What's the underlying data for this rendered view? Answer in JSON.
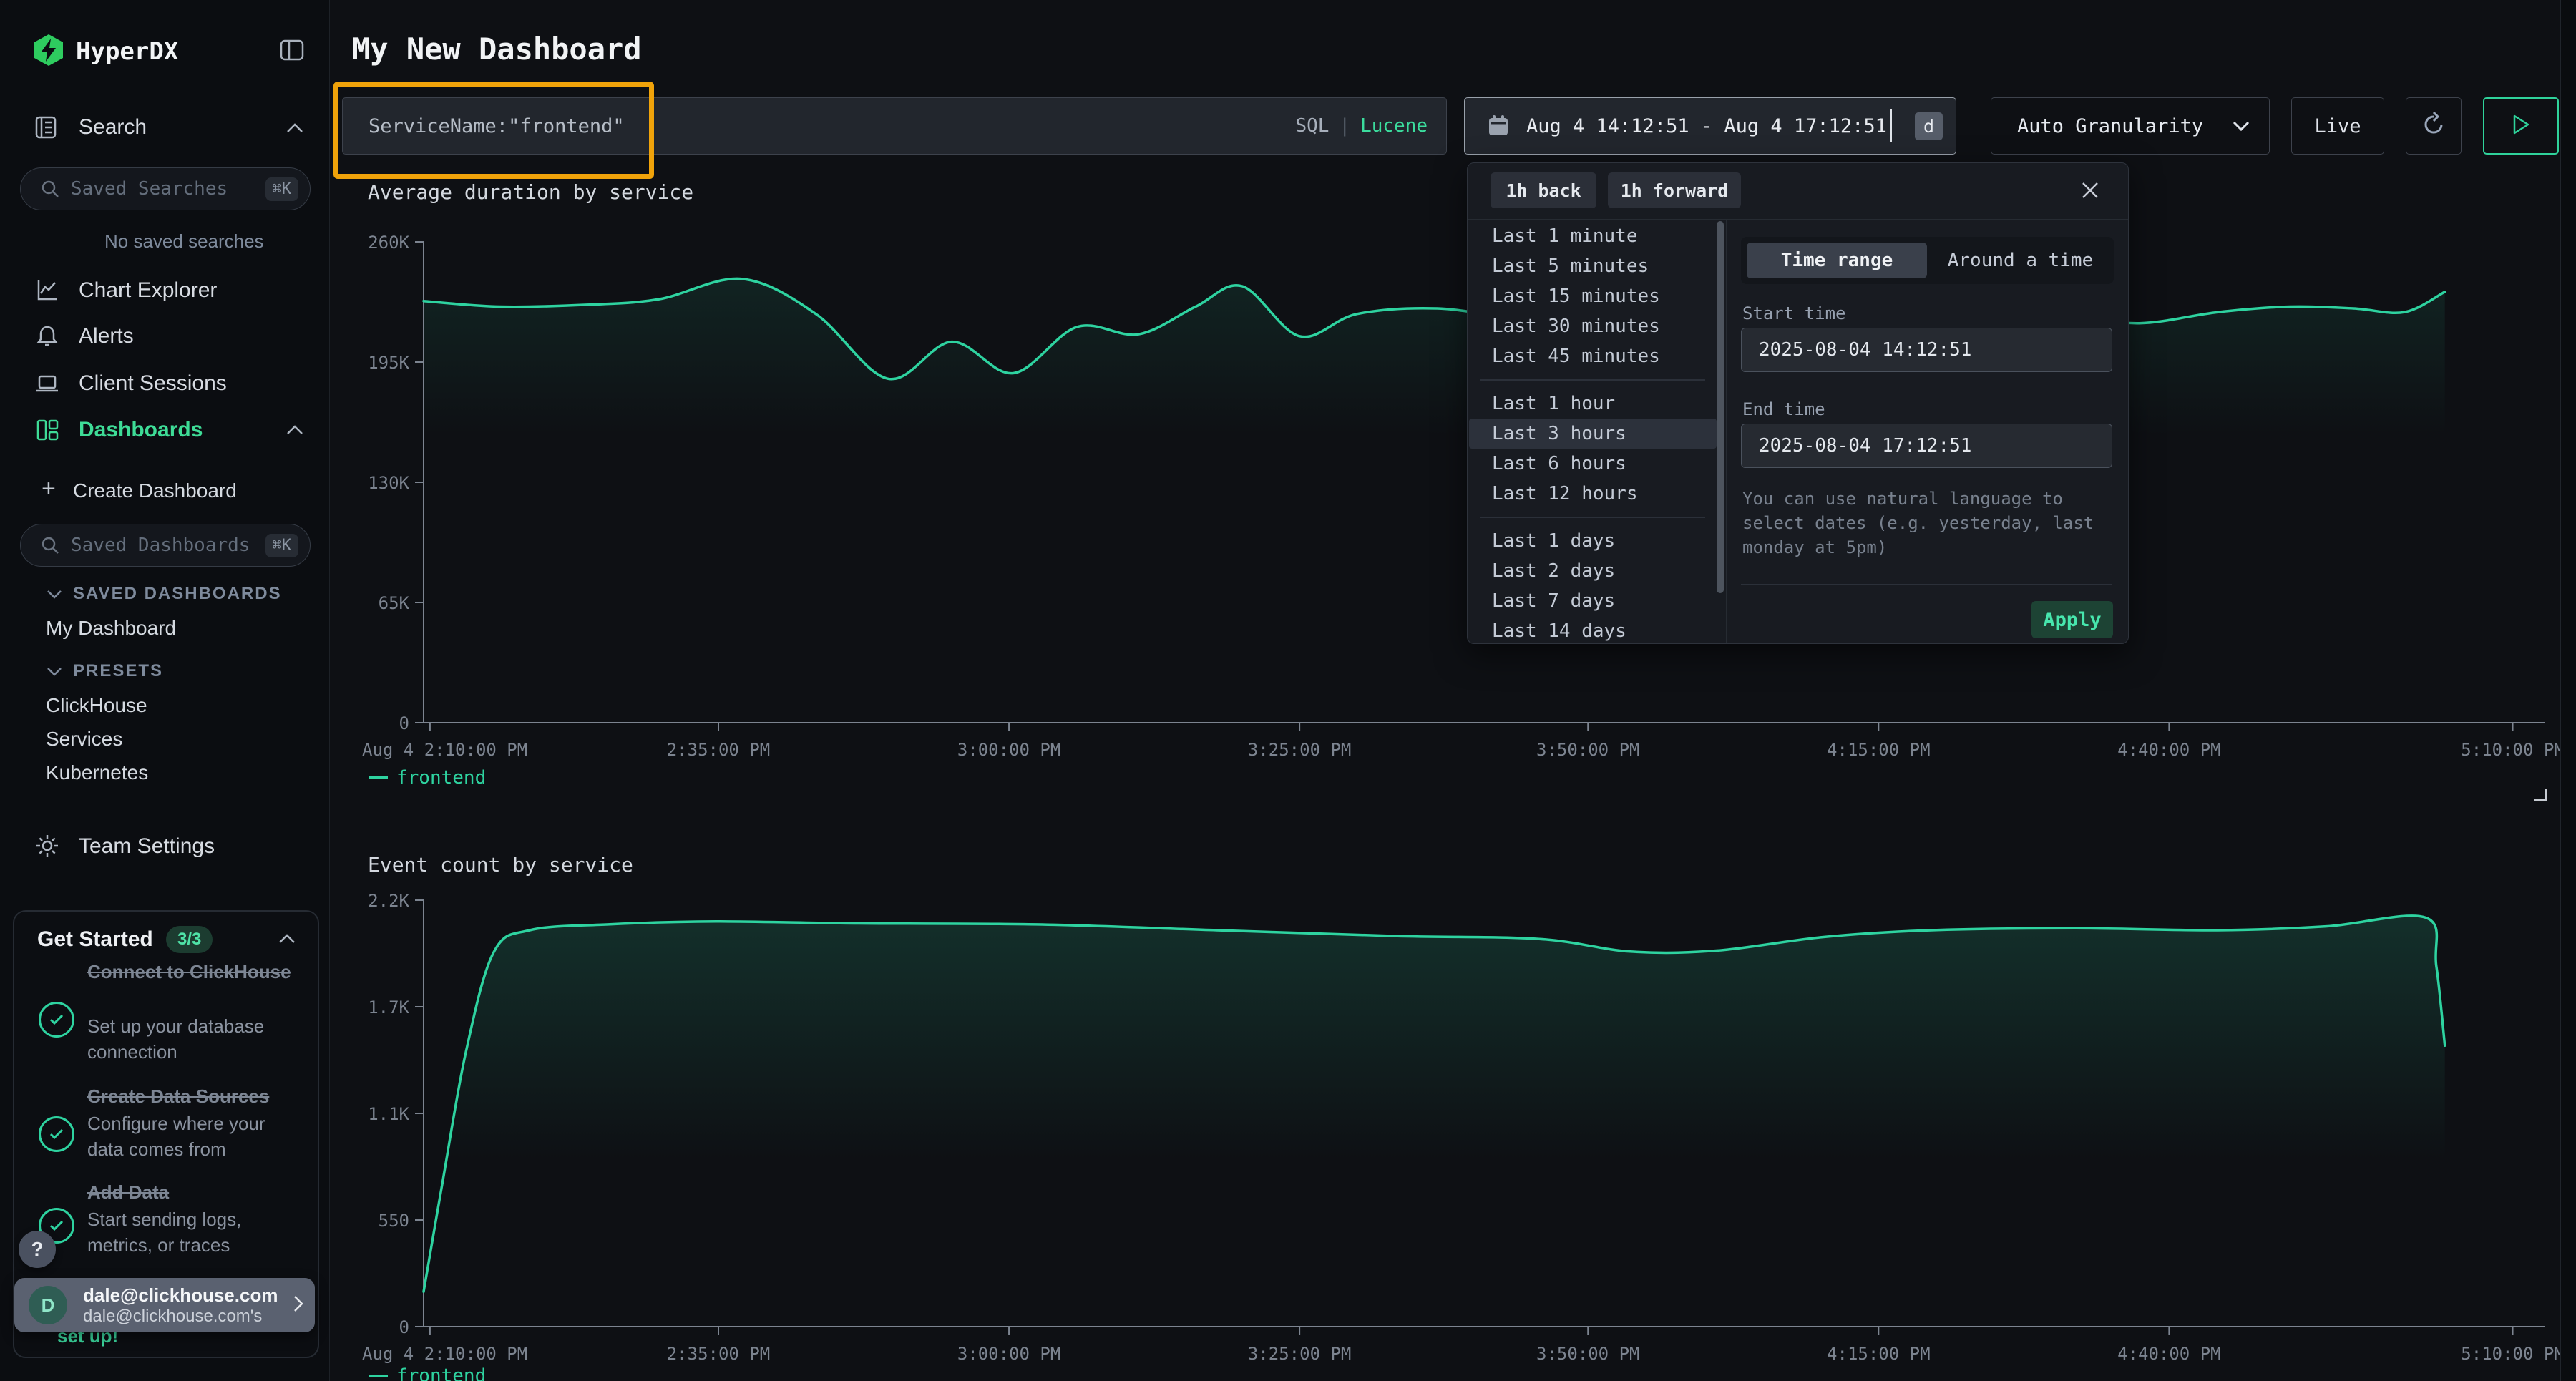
{
  "app": {
    "name": "HyperDX"
  },
  "sidebar": {
    "search_label": "Search",
    "saved_searches_placeholder": "Saved Searches",
    "saved_searches_shortcut": "⌘K",
    "no_saved_searches": "No saved searches",
    "nav_chart_explorer": "Chart Explorer",
    "nav_alerts": "Alerts",
    "nav_client_sessions": "Client Sessions",
    "nav_dashboards": "Dashboards",
    "create_dashboard": "Create Dashboard",
    "saved_dashboards_placeholder": "Saved Dashboards",
    "saved_dashboards_shortcut": "⌘K",
    "section_saved": "SAVED DASHBOARDS",
    "saved_items": [
      "My Dashboard"
    ],
    "section_presets": "PRESETS",
    "preset_items": [
      "ClickHouse",
      "Services",
      "Kubernetes"
    ],
    "team_settings": "Team Settings",
    "get_started": {
      "title": "Get Started",
      "badge": "3/3",
      "items": [
        {
          "title": "Connect to ClickHouse",
          "desc": "Set up your database connection"
        },
        {
          "title": "Create Data Sources",
          "desc": "Configure where your data comes from"
        },
        {
          "title": "Add Data",
          "desc": "Start sending logs, metrics, or traces"
        }
      ],
      "footer_peek": "set up!"
    },
    "help_label": "?",
    "user": {
      "initial": "D",
      "name": "dale@clickhouse.com",
      "subtitle": "dale@clickhouse.com's"
    }
  },
  "header": {
    "title": "My New Dashboard"
  },
  "toolbar": {
    "filter_value": "ServiceName:\"frontend\"",
    "lang_sql": "SQL",
    "lang_sep": "|",
    "lang_lucene": "Lucene",
    "time_value": "Aug 4 14:12:51 - Aug 4 17:12:51",
    "time_shortcut": "d",
    "granularity": "Auto Granularity",
    "live": "Live"
  },
  "time_picker": {
    "back": "1h back",
    "forward": "1h forward",
    "options": [
      "Last 1 minute",
      "Last 5 minutes",
      "Last 15 minutes",
      "Last 30 minutes",
      "Last 45 minutes",
      "Last 1 hour",
      "Last 3 hours",
      "Last 6 hours",
      "Last 12 hours",
      "Last 1 days",
      "Last 2 days",
      "Last 7 days",
      "Last 14 days"
    ],
    "selected": "Last 3 hours",
    "group_breaks": [
      5,
      9
    ],
    "tab_active": "Time range",
    "tab_inactive": "Around a time",
    "start_label": "Start time",
    "start_value": "2025-08-04 14:12:51",
    "end_label": "End time",
    "end_value": "2025-08-04 17:12:51",
    "hint": "You can use natural language to select dates (e.g. yesterday, last monday at 5pm)",
    "apply": "Apply"
  },
  "chart_data": [
    {
      "type": "line",
      "title": "Average duration by service",
      "x_type": "time",
      "ylim": [
        0,
        260000
      ],
      "yticks": [
        {
          "v": 0,
          "label": "0"
        },
        {
          "v": 65000,
          "label": "65K"
        },
        {
          "v": 130000,
          "label": "130K"
        },
        {
          "v": 195000,
          "label": "195K"
        },
        {
          "v": 260000,
          "label": "260K"
        }
      ],
      "xticks": [
        {
          "pos": 0.003,
          "label": "Aug 4 2:10:00 PM",
          "anchor": "start"
        },
        {
          "pos": 0.139,
          "label": "2:35:00 PM"
        },
        {
          "pos": 0.276,
          "label": "3:00:00 PM"
        },
        {
          "pos": 0.413,
          "label": "3:25:00 PM"
        },
        {
          "pos": 0.549,
          "label": "3:50:00 PM"
        },
        {
          "pos": 0.686,
          "label": "4:15:00 PM"
        },
        {
          "pos": 0.823,
          "label": "4:40:00 PM"
        },
        {
          "pos": 0.985,
          "label": "5:10:00 PM"
        }
      ],
      "legend": [
        "frontend"
      ],
      "grid": false,
      "series": [
        {
          "name": "frontend",
          "color": "#2ed3a0",
          "points": [
            [
              0,
              228000
            ],
            [
              0.036,
              225000
            ],
            [
              0.077,
              226000
            ],
            [
              0.111,
              229000
            ],
            [
              0.15,
              240000
            ],
            [
              0.185,
              221000
            ],
            [
              0.219,
              186000
            ],
            [
              0.249,
              206000
            ],
            [
              0.278,
              189000
            ],
            [
              0.308,
              214000
            ],
            [
              0.337,
              210000
            ],
            [
              0.364,
              225000
            ],
            [
              0.386,
              236000
            ],
            [
              0.413,
              209000
            ],
            [
              0.44,
              221000
            ],
            [
              0.478,
              224000
            ],
            [
              0.526,
              218000
            ],
            [
              0.576,
              224000
            ],
            [
              0.627,
              216000
            ],
            [
              0.678,
              221000
            ],
            [
              0.728,
              215000
            ],
            [
              0.775,
              220000
            ],
            [
              0.809,
              216000
            ],
            [
              0.846,
              222000
            ],
            [
              0.88,
              225000
            ],
            [
              0.91,
              224000
            ],
            [
              0.934,
              222000
            ],
            [
              0.953,
              233000
            ]
          ]
        }
      ]
    },
    {
      "type": "line",
      "title": "Event count by service",
      "x_type": "time",
      "ylim": [
        0,
        2200
      ],
      "yticks": [
        {
          "v": 0,
          "label": "0"
        },
        {
          "v": 550,
          "label": "550"
        },
        {
          "v": 1100,
          "label": "1.1K"
        },
        {
          "v": 1650,
          "label": "1.7K"
        },
        {
          "v": 2200,
          "label": "2.2K"
        }
      ],
      "xticks": [
        {
          "pos": 0.003,
          "label": "Aug 4 2:10:00 PM",
          "anchor": "start"
        },
        {
          "pos": 0.139,
          "label": "2:35:00 PM"
        },
        {
          "pos": 0.276,
          "label": "3:00:00 PM"
        },
        {
          "pos": 0.413,
          "label": "3:25:00 PM"
        },
        {
          "pos": 0.549,
          "label": "3:50:00 PM"
        },
        {
          "pos": 0.686,
          "label": "4:15:00 PM"
        },
        {
          "pos": 0.823,
          "label": "4:40:00 PM"
        },
        {
          "pos": 0.985,
          "label": "5:10:00 PM"
        }
      ],
      "legend": [
        "frontend"
      ],
      "grid": false,
      "series": [
        {
          "name": "frontend",
          "color": "#2ed3a0",
          "points": [
            [
              0,
              180
            ],
            [
              0.009,
              750
            ],
            [
              0.02,
              1420
            ],
            [
              0.033,
              1930
            ],
            [
              0.05,
              2045
            ],
            [
              0.087,
              2075
            ],
            [
              0.138,
              2090
            ],
            [
              0.205,
              2080
            ],
            [
              0.289,
              2075
            ],
            [
              0.374,
              2045
            ],
            [
              0.458,
              2015
            ],
            [
              0.526,
              2000
            ],
            [
              0.569,
              1935
            ],
            [
              0.61,
              1940
            ],
            [
              0.66,
              2010
            ],
            [
              0.711,
              2045
            ],
            [
              0.779,
              2055
            ],
            [
              0.846,
              2045
            ],
            [
              0.897,
              2065
            ],
            [
              0.944,
              2110
            ],
            [
              0.949,
              1860
            ],
            [
              0.953,
              1450
            ]
          ]
        }
      ]
    }
  ],
  "colors": {
    "accent": "#2ed3a0",
    "accent_text": "#3edc97",
    "annotation": "#f0a30a",
    "apply_bg": "#1d4334",
    "apply_text": "#47e6ad",
    "axis": "#7c8490"
  }
}
